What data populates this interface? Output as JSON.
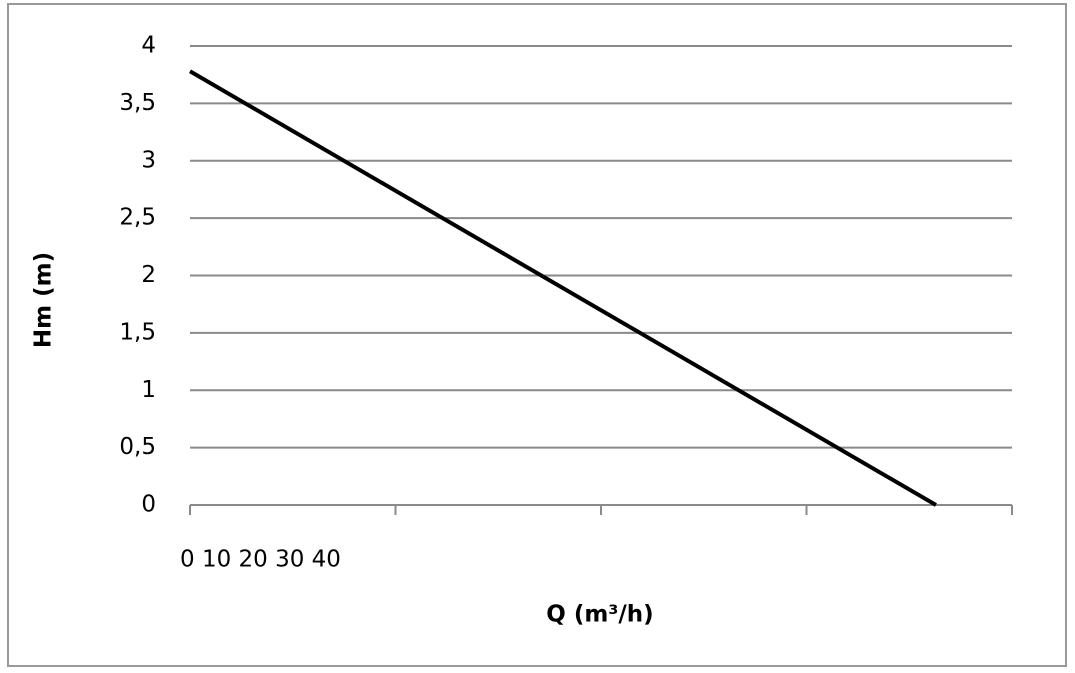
{
  "chart_data": {
    "type": "line",
    "x_title": "Q (m³/h)",
    "y_title": "Hm (m)",
    "x_tick_text": "0 10 20 30 40",
    "x": [
      0,
      3.63
    ],
    "values": [
      3.78,
      0
    ],
    "color": "#000000",
    "xlim": [
      0,
      4
    ],
    "xtick_marks": [
      0,
      1,
      2,
      3,
      4
    ],
    "ylim": [
      0,
      4
    ],
    "yticks": [
      0,
      {
        "value": 0.5,
        "label": "0,5"
      },
      1,
      {
        "value": 1.5,
        "label": "1,5"
      },
      2,
      {
        "value": 2.5,
        "label": "2,5"
      },
      3,
      {
        "value": 3.5,
        "label": "3,5"
      },
      4
    ],
    "grid": true
  }
}
